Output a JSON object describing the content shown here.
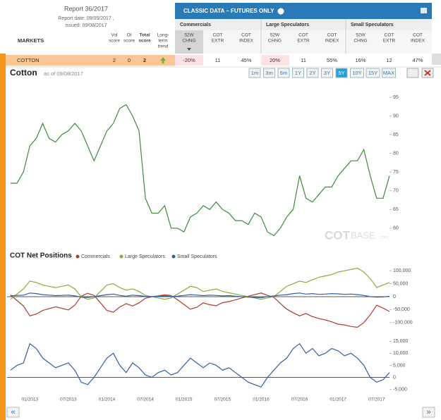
{
  "header": {
    "report": "Report 36/2017",
    "report_date": "Report date: 09/05/2017 ,",
    "issued": "issued: 09/08/2017"
  },
  "table": {
    "markets_label": "MARKETS",
    "columns": [
      "Vol",
      "score",
      "OI",
      "score",
      "Total",
      "score",
      "Long-",
      "term",
      "trend"
    ],
    "banner": "CLASSIC DATA – FUTURES ONLY",
    "groups": [
      "Commercials",
      "Large Speculators",
      "Small Speculators"
    ],
    "subcolumns": [
      [
        "52W",
        "CHNG"
      ],
      [
        "COT",
        "EXTR"
      ],
      [
        "COT",
        "INDEX"
      ],
      [
        "52W",
        "CHNG"
      ],
      [
        "COT",
        "EXTR"
      ],
      [
        "COT",
        "INDEX"
      ],
      [
        "52W",
        "CHNG"
      ],
      [
        "COT",
        "EXTR"
      ],
      [
        "COT",
        "INDEX"
      ]
    ],
    "row": {
      "name": "COTTON",
      "vol": "2",
      "oi": "0",
      "total": "2",
      "cells": [
        "-20%",
        "11",
        "45%",
        "20%",
        "11",
        "55%",
        "16%",
        "12",
        "47%"
      ]
    }
  },
  "panel": {
    "range_buttons": [
      "1m",
      "3m",
      "6m",
      "1Y",
      "2Y",
      "3Y",
      "5Y",
      "10Y",
      "15Y",
      "MAX"
    ],
    "active_range": "5Y",
    "watermark": [
      "COT",
      "BASE",
      ".com"
    ],
    "pager": [
      "«",
      "»"
    ]
  },
  "chart_data": [
    {
      "type": "line",
      "title": "Cotton",
      "subtitle": "as of 09/08/2017",
      "color": "#3c8c3c",
      "x": [
        "10/2012",
        "11/2012",
        "12/2012",
        "01/2013",
        "02/2013",
        "03/2013",
        "04/2013",
        "05/2013",
        "06/2013",
        "07/2013",
        "08/2013",
        "09/2013",
        "10/2013",
        "11/2013",
        "12/2013",
        "01/2014",
        "02/2014",
        "03/2014",
        "04/2014",
        "05/2014",
        "06/2014",
        "07/2014",
        "08/2014",
        "09/2014",
        "10/2014",
        "11/2014",
        "12/2014",
        "01/2015",
        "02/2015",
        "03/2015",
        "04/2015",
        "05/2015",
        "06/2015",
        "07/2015",
        "08/2015",
        "09/2015",
        "10/2015",
        "11/2015",
        "12/2015",
        "01/2016",
        "02/2016",
        "03/2016",
        "04/2016",
        "05/2016",
        "06/2016",
        "07/2016",
        "08/2016",
        "09/2016",
        "10/2016",
        "11/2016",
        "12/2016",
        "01/2017",
        "02/2017",
        "03/2017",
        "04/2017",
        "05/2017",
        "06/2017",
        "07/2017",
        "08/2017",
        "09/2017"
      ],
      "values": [
        72,
        72,
        75,
        82,
        84,
        88,
        84,
        83,
        85,
        86,
        88,
        86,
        82,
        78,
        82,
        86,
        88,
        92,
        93,
        90,
        86,
        68,
        64,
        64,
        66,
        60,
        60,
        59,
        63,
        64,
        66,
        65,
        67,
        65,
        64,
        62,
        62,
        61,
        64,
        63,
        59,
        58,
        60,
        63,
        65,
        74,
        68,
        67,
        69,
        71,
        71,
        74,
        76,
        78,
        78,
        81,
        74,
        68,
        68,
        74
      ],
      "ylim": [
        56,
        98
      ],
      "yticks": [
        60,
        65,
        70,
        75,
        80,
        85,
        90,
        95
      ]
    },
    {
      "type": "line",
      "title": "COT Net Positions",
      "x": [
        "10/2012",
        "11/2012",
        "12/2012",
        "01/2013",
        "02/2013",
        "03/2013",
        "04/2013",
        "05/2013",
        "06/2013",
        "07/2013",
        "08/2013",
        "09/2013",
        "10/2013",
        "11/2013",
        "12/2013",
        "01/2014",
        "02/2014",
        "03/2014",
        "04/2014",
        "05/2014",
        "06/2014",
        "07/2014",
        "08/2014",
        "09/2014",
        "10/2014",
        "11/2014",
        "12/2014",
        "01/2015",
        "02/2015",
        "03/2015",
        "04/2015",
        "05/2015",
        "06/2015",
        "07/2015",
        "08/2015",
        "09/2015",
        "10/2015",
        "11/2015",
        "12/2015",
        "01/2016",
        "02/2016",
        "03/2016",
        "04/2016",
        "05/2016",
        "06/2016",
        "07/2016",
        "08/2016",
        "09/2016",
        "10/2016",
        "11/2016",
        "12/2016",
        "01/2017",
        "02/2017",
        "03/2017",
        "04/2017",
        "05/2017",
        "06/2017",
        "07/2017",
        "08/2017",
        "09/2017"
      ],
      "series": [
        {
          "name": "Commercials",
          "color": "#b03a2e",
          "values": [
            7000,
            -15000,
            -36000,
            -74000,
            -67000,
            -53000,
            -46000,
            -39000,
            -45000,
            -51000,
            -33000,
            2000,
            13000,
            5000,
            -24000,
            -53000,
            -60000,
            -40000,
            -27000,
            -36000,
            -24000,
            -6000,
            0,
            3000,
            7000,
            4000,
            -12000,
            -30000,
            -48000,
            -41000,
            -24000,
            -31000,
            -35000,
            -23000,
            -19000,
            -12000,
            -5000,
            2000,
            8000,
            14000,
            5000,
            -3000,
            -26000,
            -48000,
            -62000,
            -74000,
            -65000,
            -77000,
            -84000,
            -90000,
            -97000,
            -106000,
            -109000,
            -115000,
            -118000,
            -100000,
            -70000,
            -33000,
            -44000,
            -57000
          ]
        },
        {
          "name": "Large Speculators",
          "color": "#8aac3c",
          "values": [
            -10000,
            10000,
            30000,
            60000,
            55000,
            45000,
            40000,
            35000,
            40000,
            45000,
            30000,
            0,
            -10000,
            -5000,
            20000,
            45000,
            50000,
            35000,
            25000,
            30000,
            20000,
            5000,
            0,
            -5000,
            -10000,
            -5000,
            10000,
            25000,
            40000,
            35000,
            20000,
            25000,
            30000,
            20000,
            15000,
            10000,
            5000,
            0,
            -5000,
            -10000,
            -5000,
            0,
            20000,
            40000,
            50000,
            60000,
            55000,
            65000,
            75000,
            80000,
            85000,
            95000,
            100000,
            105000,
            110000,
            95000,
            70000,
            35000,
            45000,
            55000
          ]
        },
        {
          "name": "Small Speculators",
          "color": "#2e5fa8",
          "values": [
            3000,
            5000,
            6000,
            14000,
            12000,
            8000,
            6000,
            4000,
            5000,
            6000,
            3000,
            -2000,
            -3000,
            0,
            4000,
            8000,
            10000,
            5000,
            2000,
            6000,
            4000,
            1000,
            0,
            2000,
            3000,
            1000,
            2000,
            5000,
            8000,
            6000,
            4000,
            6000,
            5000,
            3000,
            4000,
            2000,
            0,
            -2000,
            -3000,
            -4000,
            0,
            3000,
            6000,
            8000,
            12000,
            14000,
            10000,
            12000,
            9000,
            10000,
            12000,
            11000,
            9000,
            10000,
            8000,
            5000,
            0,
            -2000,
            -1000,
            2000
          ]
        }
      ],
      "ylim": [
        -125000,
        125000
      ],
      "yticks": [
        {
          "value": 100000,
          "label": "100,000"
        },
        {
          "value": 50000,
          "label": "50,000"
        },
        0,
        {
          "value": -50000,
          "label": "-50,000"
        },
        {
          "value": -100000,
          "label": "-100,000"
        }
      ],
      "zero_line": true
    },
    {
      "type": "line",
      "color": "#2e5fa8",
      "x": [
        "10/2012",
        "11/2012",
        "12/2012",
        "01/2013",
        "02/2013",
        "03/2013",
        "04/2013",
        "05/2013",
        "06/2013",
        "07/2013",
        "08/2013",
        "09/2013",
        "10/2013",
        "11/2013",
        "12/2013",
        "01/2014",
        "02/2014",
        "03/2014",
        "04/2014",
        "05/2014",
        "06/2014",
        "07/2014",
        "08/2014",
        "09/2014",
        "10/2014",
        "11/2014",
        "12/2014",
        "01/2015",
        "02/2015",
        "03/2015",
        "04/2015",
        "05/2015",
        "06/2015",
        "07/2015",
        "08/2015",
        "09/2015",
        "10/2015",
        "11/2015",
        "12/2015",
        "01/2016",
        "02/2016",
        "03/2016",
        "04/2016",
        "05/2016",
        "06/2016",
        "07/2016",
        "08/2016",
        "09/2016",
        "10/2016",
        "11/2016",
        "12/2016",
        "01/2017",
        "02/2017",
        "03/2017",
        "04/2017",
        "05/2017",
        "06/2017",
        "07/2017",
        "08/2017",
        "09/2017"
      ],
      "values": [
        3000,
        5000,
        6000,
        14000,
        12000,
        8000,
        6000,
        4000,
        5000,
        6000,
        3000,
        -2000,
        -3000,
        0,
        4000,
        8000,
        10000,
        5000,
        2000,
        6000,
        4000,
        1000,
        0,
        2000,
        3000,
        1000,
        2000,
        5000,
        8000,
        6000,
        4000,
        6000,
        5000,
        3000,
        4000,
        2000,
        0,
        -2000,
        -3000,
        -4000,
        0,
        3000,
        6000,
        8000,
        12000,
        14000,
        10000,
        12000,
        9000,
        10000,
        12000,
        11000,
        9000,
        10000,
        8000,
        5000,
        0,
        -2000,
        -1000,
        2000
      ],
      "ylim": [
        -6000,
        18000
      ],
      "yticks": [
        {
          "value": 15000,
          "label": "15,000"
        },
        {
          "value": 10000,
          "label": "10,000"
        },
        {
          "value": 5000,
          "label": "5,000"
        },
        0,
        {
          "value": -5000,
          "label": "-5,000"
        }
      ],
      "zero_line": true,
      "xticks": [
        "01/2013",
        "07/2013",
        "01/2014",
        "07/2014",
        "01/2015",
        "07/2015",
        "01/2016",
        "07/2016",
        "01/2017",
        "07/2017"
      ]
    }
  ]
}
